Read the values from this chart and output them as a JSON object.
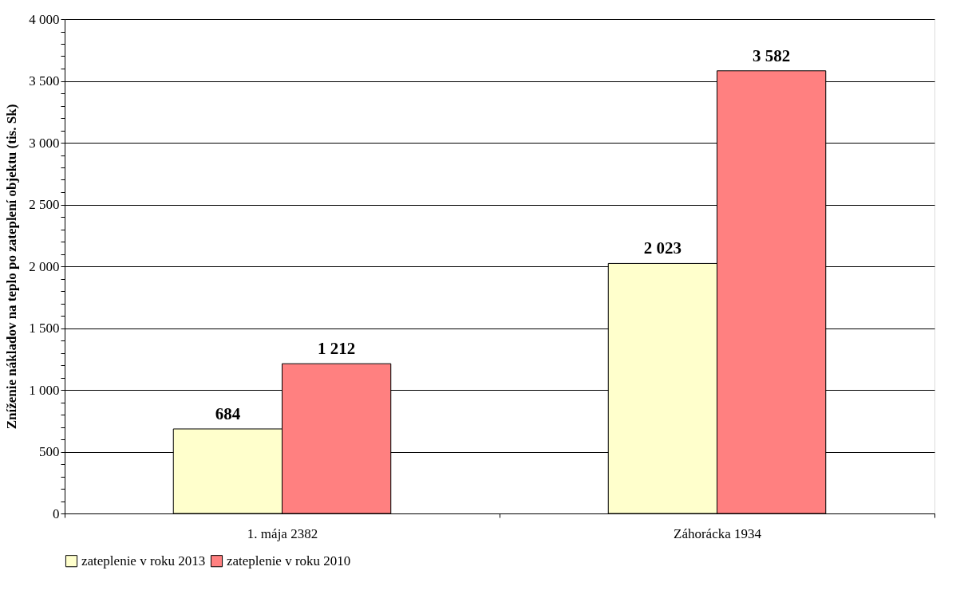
{
  "chart_data": {
    "type": "bar",
    "ylabel": "Zníženie nákladov na teplo po zateplení objektu (tis. Sk)",
    "categories": [
      "1. mája 2382",
      "Záhorácka 1934"
    ],
    "series": [
      {
        "name": "zateplenie v roku 2013",
        "color": "#ffffcc",
        "values": [
          684,
          2023
        ],
        "value_labels": [
          "684",
          "2 023"
        ]
      },
      {
        "name": "zateplenie v roku 2010",
        "color": "#ff8080",
        "values": [
          1212,
          3582
        ],
        "value_labels": [
          "1 212",
          "3 582"
        ]
      }
    ],
    "ylim": [
      0,
      4000
    ],
    "yticks": [
      0,
      {
        "value": 100,
        "label": null
      },
      {
        "value": 200,
        "label": null
      },
      {
        "value": 300,
        "label": null
      },
      {
        "value": 400,
        "label": null
      },
      500,
      {
        "value": 600,
        "label": null
      },
      {
        "value": 700,
        "label": null
      },
      {
        "value": 800,
        "label": null
      },
      {
        "value": 900,
        "label": null
      },
      {
        "value": 1000,
        "label": "1 000"
      },
      {
        "value": 1100,
        "label": null
      },
      {
        "value": 1200,
        "label": null
      },
      {
        "value": 1300,
        "label": null
      },
      {
        "value": 1400,
        "label": null
      },
      {
        "value": 1500,
        "label": "1 500"
      },
      {
        "value": 1600,
        "label": null
      },
      {
        "value": 1700,
        "label": null
      },
      {
        "value": 1800,
        "label": null
      },
      {
        "value": 1900,
        "label": null
      },
      {
        "value": 2000,
        "label": "2 000"
      },
      {
        "value": 2100,
        "label": null
      },
      {
        "value": 2200,
        "label": null
      },
      {
        "value": 2300,
        "label": null
      },
      {
        "value": 2400,
        "label": null
      },
      {
        "value": 2500,
        "label": "2 500"
      },
      {
        "value": 2600,
        "label": null
      },
      {
        "value": 2700,
        "label": null
      },
      {
        "value": 2800,
        "label": null
      },
      {
        "value": 2900,
        "label": null
      },
      {
        "value": 3000,
        "label": "3 000"
      },
      {
        "value": 3100,
        "label": null
      },
      {
        "value": 3200,
        "label": null
      },
      {
        "value": 3300,
        "label": null
      },
      {
        "value": 3400,
        "label": null
      },
      {
        "value": 3500,
        "label": "3 500"
      },
      {
        "value": 3600,
        "label": null
      },
      {
        "value": 3700,
        "label": null
      },
      {
        "value": 3800,
        "label": null
      },
      {
        "value": 3900,
        "label": null
      },
      {
        "value": 4000,
        "label": "4 000"
      }
    ],
    "grid": "y",
    "legend": "bottom"
  }
}
